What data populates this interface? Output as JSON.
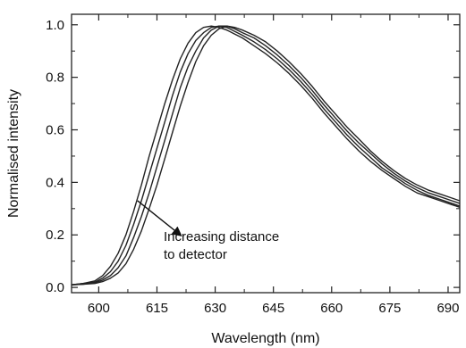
{
  "chart_data": {
    "type": "line",
    "title": "",
    "xlabel": "Wavelength (nm)",
    "ylabel": "Normalised intensity",
    "xlim": [
      593,
      693
    ],
    "ylim": [
      -0.02,
      1.04
    ],
    "x_ticks": [
      600,
      615,
      630,
      645,
      660,
      675,
      690
    ],
    "y_ticks": [
      0.0,
      0.2,
      0.4,
      0.6,
      0.8,
      1.0
    ],
    "x_tick_labels": [
      "600",
      "615",
      "630",
      "645",
      "660",
      "675",
      "690"
    ],
    "y_tick_labels": [
      "0.0",
      "0.2",
      "0.4",
      "0.6",
      "0.8",
      "1.0"
    ],
    "grid": false,
    "legend": "none",
    "line_color": "#222222",
    "annotation": {
      "lines": [
        "Increasing distance",
        "to detector"
      ],
      "arrow": {
        "from": [
          610,
          0.33
        ],
        "to": [
          621,
          0.2
        ]
      }
    },
    "series": [
      {
        "x": [
          593,
          596,
          599,
          601,
          603,
          605,
          607,
          609,
          611,
          613,
          615,
          617,
          619,
          621,
          623,
          625,
          627,
          629,
          631,
          633,
          635,
          637,
          640,
          643,
          646,
          649,
          652,
          655,
          658,
          661,
          664,
          667,
          670,
          673,
          676,
          679,
          682,
          685,
          688,
          691,
          693
        ],
        "y": [
          0.01,
          0.015,
          0.025,
          0.045,
          0.08,
          0.13,
          0.2,
          0.29,
          0.39,
          0.5,
          0.6,
          0.7,
          0.79,
          0.87,
          0.93,
          0.97,
          0.99,
          0.995,
          0.99,
          0.98,
          0.965,
          0.95,
          0.92,
          0.89,
          0.855,
          0.815,
          0.77,
          0.72,
          0.665,
          0.615,
          0.565,
          0.52,
          0.48,
          0.445,
          0.415,
          0.385,
          0.36,
          0.345,
          0.33,
          0.315,
          0.305
        ]
      },
      {
        "x": [
          593,
          596,
          599,
          601,
          603,
          605,
          607,
          609,
          611,
          613,
          615,
          617,
          619,
          621,
          623,
          625,
          627,
          629,
          631,
          633,
          635,
          637,
          640,
          643,
          646,
          649,
          652,
          655,
          658,
          661,
          664,
          667,
          670,
          673,
          676,
          679,
          682,
          685,
          688,
          691,
          693
        ],
        "y": [
          0.01,
          0.015,
          0.02,
          0.035,
          0.06,
          0.1,
          0.16,
          0.24,
          0.33,
          0.43,
          0.53,
          0.63,
          0.73,
          0.82,
          0.89,
          0.94,
          0.97,
          0.99,
          0.995,
          0.99,
          0.975,
          0.96,
          0.935,
          0.905,
          0.87,
          0.83,
          0.785,
          0.735,
          0.68,
          0.63,
          0.58,
          0.535,
          0.495,
          0.455,
          0.425,
          0.395,
          0.37,
          0.35,
          0.335,
          0.32,
          0.31
        ]
      },
      {
        "x": [
          593,
          596,
          599,
          601,
          603,
          605,
          607,
          609,
          611,
          613,
          615,
          617,
          619,
          621,
          623,
          625,
          627,
          629,
          631,
          633,
          635,
          637,
          640,
          643,
          646,
          649,
          652,
          655,
          658,
          661,
          664,
          667,
          670,
          673,
          676,
          679,
          682,
          685,
          688,
          691,
          693
        ],
        "y": [
          0.01,
          0.012,
          0.018,
          0.028,
          0.045,
          0.075,
          0.12,
          0.19,
          0.27,
          0.36,
          0.46,
          0.56,
          0.66,
          0.76,
          0.84,
          0.9,
          0.95,
          0.98,
          0.995,
          0.995,
          0.985,
          0.97,
          0.95,
          0.92,
          0.885,
          0.845,
          0.8,
          0.75,
          0.695,
          0.645,
          0.595,
          0.55,
          0.51,
          0.47,
          0.435,
          0.405,
          0.38,
          0.36,
          0.345,
          0.33,
          0.32
        ]
      },
      {
        "x": [
          593,
          596,
          599,
          601,
          603,
          605,
          607,
          609,
          611,
          613,
          615,
          617,
          619,
          621,
          623,
          625,
          627,
          629,
          631,
          633,
          635,
          637,
          640,
          643,
          646,
          649,
          652,
          655,
          658,
          661,
          664,
          667,
          670,
          673,
          676,
          679,
          682,
          685,
          688,
          691,
          693
        ],
        "y": [
          0.01,
          0.012,
          0.015,
          0.022,
          0.035,
          0.055,
          0.09,
          0.145,
          0.215,
          0.3,
          0.39,
          0.49,
          0.59,
          0.69,
          0.78,
          0.86,
          0.92,
          0.96,
          0.985,
          0.995,
          0.99,
          0.98,
          0.96,
          0.935,
          0.9,
          0.86,
          0.815,
          0.765,
          0.71,
          0.66,
          0.61,
          0.565,
          0.52,
          0.48,
          0.445,
          0.415,
          0.39,
          0.37,
          0.355,
          0.34,
          0.33
        ]
      }
    ]
  }
}
